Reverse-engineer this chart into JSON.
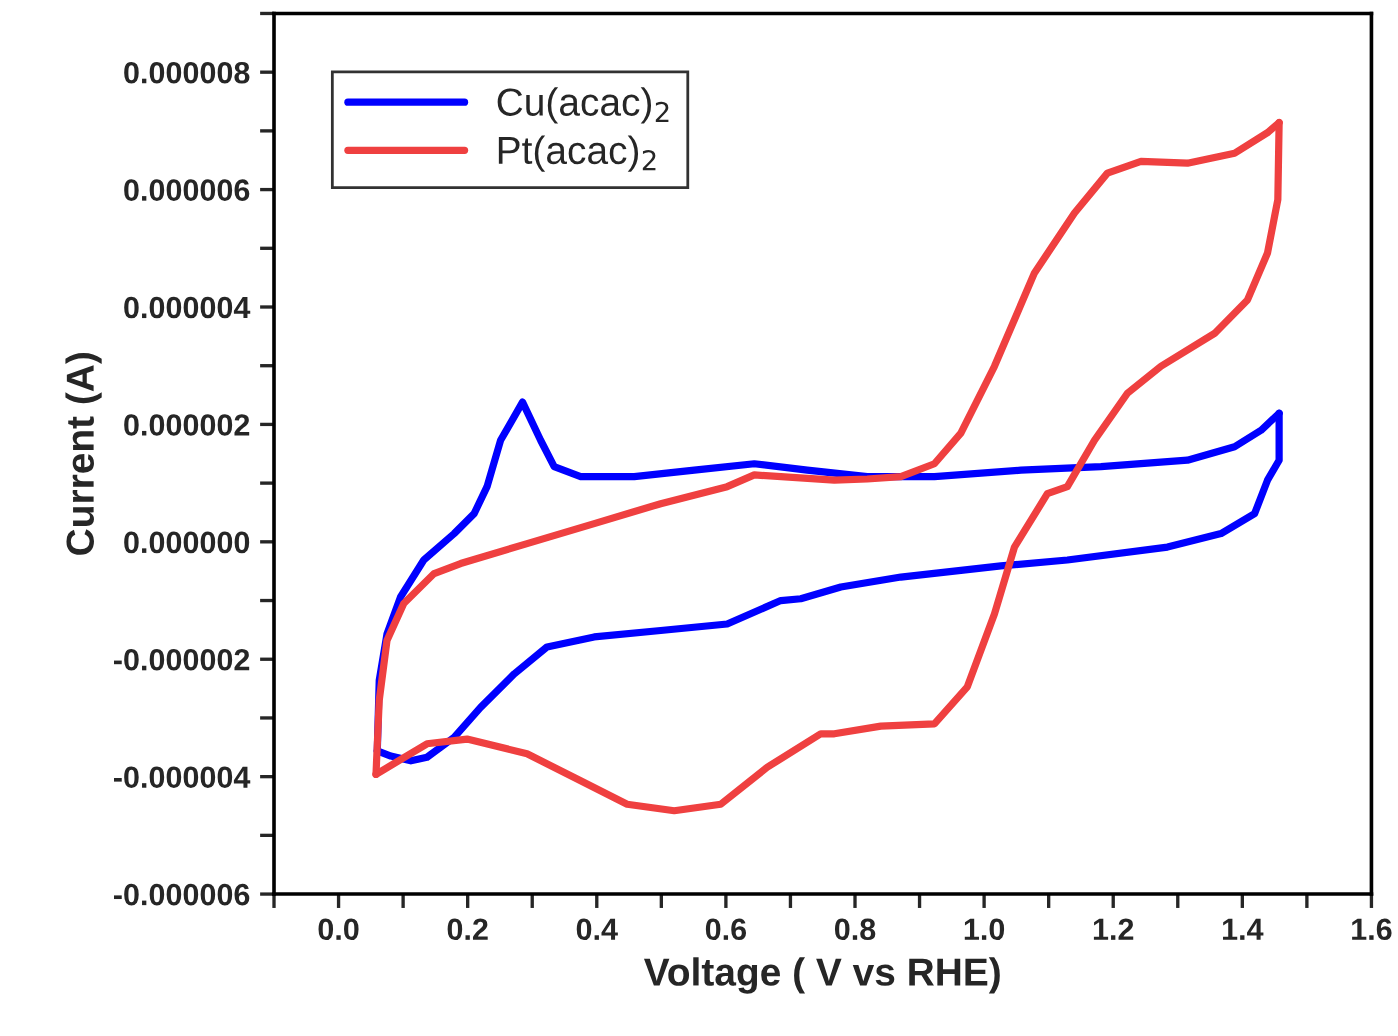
{
  "chart_data": {
    "type": "line",
    "xlabel": "Voltage ( V vs RHE)",
    "ylabel": "Current (A)",
    "xlim": [
      -0.1,
      1.6
    ],
    "ylim": [
      -6e-06,
      9e-06
    ],
    "xticks": [
      {
        "value": -0.1,
        "label": null
      },
      {
        "value": 0,
        "label": "0.0"
      },
      {
        "value": 0.1,
        "label": null
      },
      0.2,
      {
        "value": 0.3,
        "label": null
      },
      0.4,
      {
        "value": 0.5,
        "label": null
      },
      0.6,
      {
        "value": 0.7,
        "label": null
      },
      0.8,
      {
        "value": 0.9,
        "label": null
      },
      {
        "value": 1,
        "label": "1.0"
      },
      {
        "value": 1.1,
        "label": null
      },
      1.2,
      {
        "value": 1.3,
        "label": null
      },
      1.4,
      {
        "value": 1.5,
        "label": null
      },
      1.6
    ],
    "yticks": [
      {
        "value": -6e-06,
        "label": "-0.000006"
      },
      {
        "value": -5e-06,
        "label": null
      },
      {
        "value": -4e-06,
        "label": "-0.000004"
      },
      {
        "value": -3e-06,
        "label": null
      },
      {
        "value": -2e-06,
        "label": "-0.000002"
      },
      {
        "value": -1e-06,
        "label": null
      },
      {
        "value": 0,
        "label": "0.000000"
      },
      {
        "value": 1e-06,
        "label": null
      },
      {
        "value": 2e-06,
        "label": "0.000002"
      },
      {
        "value": 3e-06,
        "label": null
      },
      {
        "value": 4e-06,
        "label": "0.000004"
      },
      {
        "value": 5e-06,
        "label": null
      },
      {
        "value": 6e-06,
        "label": "0.000006"
      },
      {
        "value": 7e-06,
        "label": null
      },
      {
        "value": 8e-06,
        "label": "0.000008"
      },
      {
        "value": 9e-06,
        "label": null
      }
    ],
    "grid": false,
    "legend": "top left",
    "marker": "none",
    "line_style": "solid",
    "series": [
      {
        "name": "Cu(acac)$_{2}$",
        "color": "#0000ff",
        "x": [
          0.06,
          0.063,
          0.075,
          0.096,
          0.132,
          0.179,
          0.21,
          0.23,
          0.251,
          0.285,
          0.313,
          0.334,
          0.375,
          0.458,
          0.551,
          0.644,
          0.726,
          0.819,
          0.923,
          1.057,
          1.181,
          1.315,
          1.388,
          1.429,
          1.457
        ],
        "values": [
          -3.56e-06,
          -2.36e-06,
          -1.57e-06,
          -9.4e-07,
          -3.1e-07,
          1.4e-07,
          4.8e-07,
          9.4e-07,
          1.73e-06,
          2.38e-06,
          1.73e-06,
          1.28e-06,
          1.11e-06,
          1.11e-06,
          1.22e-06,
          1.33e-06,
          1.22e-06,
          1.11e-06,
          1.11e-06,
          1.22e-06,
          1.28e-06,
          1.39e-06,
          1.62e-06,
          1.9e-06,
          2.19e-06
        ]
      },
      {
        "color": "#0000ff",
        "x": [
          1.457,
          1.457,
          1.439,
          1.419,
          1.367,
          1.284,
          1.129,
          1.026,
          0.871,
          0.778,
          0.716,
          0.685,
          0.602,
          0.499,
          0.396,
          0.323,
          0.272,
          0.22,
          0.179,
          0.137,
          0.112,
          0.081,
          0.06
        ],
        "values": [
          2.19e-06,
          1.39e-06,
          1.05e-06,
          4.8e-07,
          1.4e-07,
          -9e-08,
          -3.1e-07,
          -4.1e-07,
          -6e-07,
          -7.7e-07,
          -9.7e-07,
          -1e-06,
          -1.4e-06,
          -1.51e-06,
          -1.62e-06,
          -1.79e-06,
          -2.25e-06,
          -2.82e-06,
          -3.33e-06,
          -3.67e-06,
          -3.73e-06,
          -3.65e-06,
          -3.56e-06
        ]
      },
      {
        "name": "Pt(acac)$_{2}$",
        "color": "#ef4040",
        "x": [
          0.058,
          0.063,
          0.075,
          0.101,
          0.148,
          0.189,
          0.292,
          0.396,
          0.499,
          0.602,
          0.644,
          0.768,
          0.819,
          0.871,
          0.923,
          0.964,
          1.016,
          1.078,
          1.14,
          1.191,
          1.243,
          1.315,
          1.388,
          1.439,
          1.457
        ],
        "values": [
          -3.96e-06,
          -2.7e-06,
          -1.68e-06,
          -1.05e-06,
          -5.4e-07,
          -3.7e-07,
          -3e-08,
          3.1e-07,
          6.5e-07,
          9.4e-07,
          1.14e-06,
          1.05e-06,
          1.07e-06,
          1.11e-06,
          1.33e-06,
          1.85e-06,
          2.99e-06,
          4.58e-06,
          5.6e-06,
          6.28e-06,
          6.48e-06,
          6.45e-06,
          6.62e-06,
          6.97e-06,
          7.14e-06
        ]
      },
      {
        "color": "#ef4040",
        "x": [
          1.457,
          1.455,
          1.439,
          1.408,
          1.357,
          1.274,
          1.222,
          1.171,
          1.129,
          1.098,
          1.047,
          1.016,
          0.974,
          0.923,
          0.84,
          0.768,
          0.747,
          0.664,
          0.592,
          0.52,
          0.447,
          0.375,
          0.292,
          0.199,
          0.137,
          0.058
        ],
        "values": [
          7.14e-06,
          5.83e-06,
          4.92e-06,
          4.12e-06,
          3.55e-06,
          2.99e-06,
          2.53e-06,
          1.73e-06,
          9.4e-07,
          8.2e-07,
          -9e-08,
          -1.23e-06,
          -2.47e-06,
          -3.1e-06,
          -3.14e-06,
          -3.27e-06,
          -3.27e-06,
          -3.84e-06,
          -4.47e-06,
          -4.58e-06,
          -4.47e-06,
          -4.07e-06,
          -3.61e-06,
          -3.36e-06,
          -3.44e-06,
          -3.96e-06
        ]
      }
    ]
  }
}
